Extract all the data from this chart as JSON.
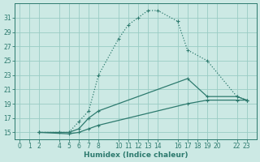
{
  "xlabel": "Humidex (Indice chaleur)",
  "bg_color": "#cce9e4",
  "grid_color": "#99ccc4",
  "line_color": "#2d7a6e",
  "xlim": [
    -0.5,
    24
  ],
  "ylim": [
    14.0,
    33.0
  ],
  "xticks": [
    0,
    1,
    2,
    4,
    5,
    6,
    7,
    8,
    10,
    11,
    12,
    13,
    14,
    16,
    17,
    18,
    19,
    20,
    22,
    23
  ],
  "yticks": [
    15,
    17,
    19,
    21,
    23,
    25,
    27,
    29,
    31
  ],
  "line1_x": [
    2,
    4,
    5,
    6,
    7,
    8,
    10,
    11,
    12,
    13,
    14,
    16,
    17,
    19,
    22,
    23
  ],
  "line1_y": [
    15,
    15,
    15,
    16.5,
    18,
    23,
    28,
    30,
    31,
    32,
    32,
    30.5,
    26.5,
    25,
    20,
    19.5
  ],
  "line1_style": ":",
  "line2_x": [
    2,
    5,
    6,
    7,
    8,
    17,
    19,
    22,
    23
  ],
  "line2_y": [
    15,
    15,
    15.5,
    17,
    18,
    22.5,
    20,
    20,
    19.5
  ],
  "line2_style": "-",
  "line3_x": [
    2,
    5,
    6,
    7,
    8,
    17,
    19,
    22,
    23
  ],
  "line3_y": [
    15,
    14.8,
    15,
    15.5,
    16,
    19,
    19.5,
    19.5,
    19.5
  ],
  "line3_style": "-",
  "figsize": [
    3.2,
    2.0
  ],
  "dpi": 100
}
